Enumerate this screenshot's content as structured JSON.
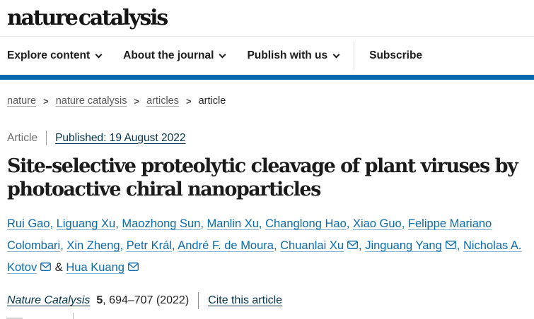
{
  "header": {
    "logo": "nature catalysis",
    "nav": [
      {
        "label": "Explore content",
        "caret": true,
        "divider_before": false
      },
      {
        "label": "About the journal",
        "caret": true,
        "divider_before": false
      },
      {
        "label": "Publish with us",
        "caret": true,
        "divider_before": false
      },
      {
        "label": "Subscribe",
        "caret": false,
        "divider_before": true
      }
    ]
  },
  "breadcrumb": {
    "separator": ">",
    "items": [
      {
        "label": "nature",
        "link": true
      },
      {
        "label": "nature catalysis",
        "link": true
      },
      {
        "label": "articles",
        "link": true
      },
      {
        "label": "article",
        "link": false
      }
    ]
  },
  "article": {
    "type_label": "Article",
    "published": "Published: 19 August 2022",
    "title": "Site-selective proteolytic cleavage of plant viruses by photoactive chiral nanoparticles",
    "title_lines": [
      "Site-selective proteolytic cleavage of plant viruses by",
      "photoactive chiral nanoparticles"
    ],
    "author_separator": ", ",
    "author_final_separator": " & ",
    "authors": [
      {
        "name": "Rui Gao",
        "email": false
      },
      {
        "name": "Liguang Xu",
        "email": false
      },
      {
        "name": "Maozhong Sun",
        "email": false
      },
      {
        "name": "Manlin Xu",
        "email": false
      },
      {
        "name": "Changlong Hao",
        "email": false
      },
      {
        "name": "Xiao Guo",
        "email": false
      },
      {
        "name": "Felippe Mariano Colombari",
        "email": false
      },
      {
        "name": "Xin Zheng",
        "email": false
      },
      {
        "name": "Petr Král",
        "email": false
      },
      {
        "name": "André F. de Moura",
        "email": false
      },
      {
        "name": "Chuanlai Xu",
        "email": true
      },
      {
        "name": "Jinguang Yang",
        "email": true
      },
      {
        "name": "Nicholas A. Kotov",
        "email": true
      },
      {
        "name": "Hua Kuang",
        "email": true
      }
    ],
    "citation": {
      "journal": "Nature Catalysis",
      "volume": "5",
      "pages_text": ", 694–707 (2022)",
      "cite_label": "Cite this article"
    }
  },
  "colors": {
    "accent_bar": "#0668ae",
    "link_blue": "#0b6aab",
    "dark_link": "#01324b",
    "breadcrumb_gray": "#595959"
  }
}
